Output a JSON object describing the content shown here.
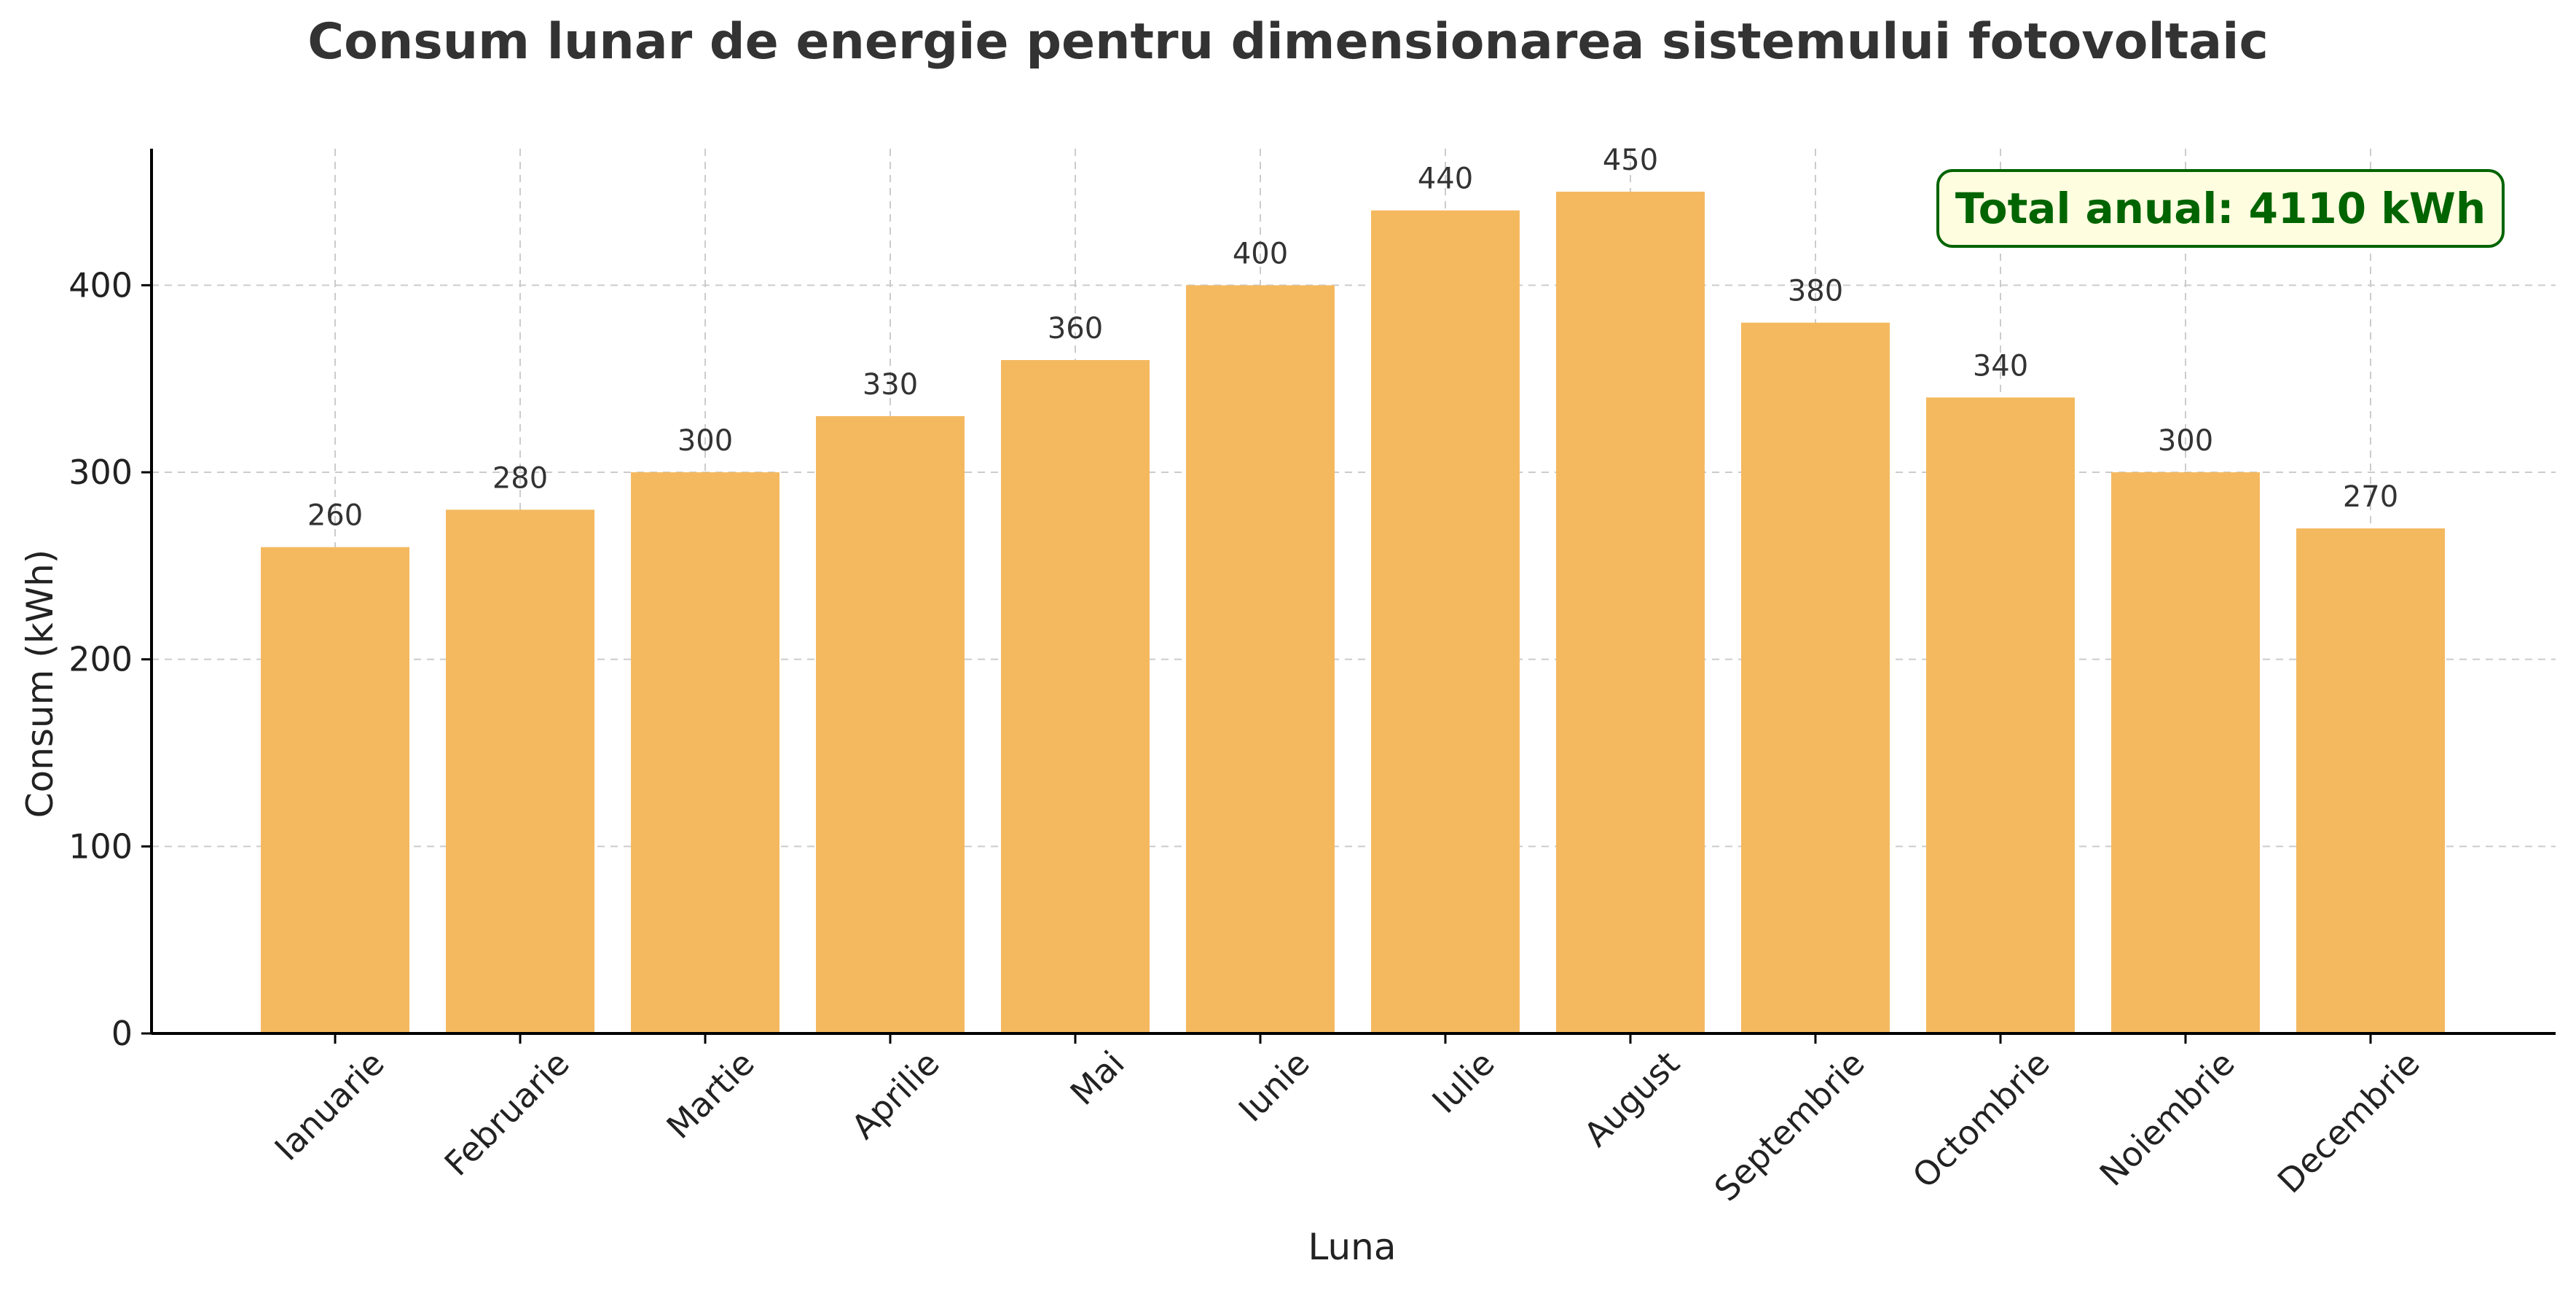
{
  "chart_data": {
    "type": "bar",
    "title": "Consum lunar de energie pentru dimensionarea sistemului fotovoltaic",
    "xlabel": "Luna",
    "ylabel": "Consum (kWh)",
    "categories": [
      "Ianuarie",
      "Februarie",
      "Martie",
      "Aprilie",
      "Mai",
      "Iunie",
      "Iulie",
      "August",
      "Septembrie",
      "Octombrie",
      "Noiembrie",
      "Decembrie"
    ],
    "values": [
      260,
      280,
      300,
      330,
      360,
      400,
      440,
      450,
      380,
      340,
      300,
      270
    ],
    "data_labels": [
      "260",
      "280",
      "300",
      "330",
      "360",
      "400",
      "440",
      "450",
      "380",
      "340",
      "300",
      "270"
    ],
    "ylim": [
      0,
      473
    ],
    "y_ticks": [
      0,
      100,
      200,
      300,
      400
    ],
    "y_tick_labels": [
      "0",
      "100",
      "200",
      "300",
      "400"
    ],
    "grid": true,
    "annotation": "Total anual: 4110 kWh",
    "annotation_position": "top-right",
    "colors": {
      "bar": "#F4B95F",
      "grid": "#cccccc",
      "annotation_text": "#006400",
      "annotation_fill": "#FFFDE0",
      "annotation_border": "#006400",
      "axis": "#000000"
    }
  }
}
